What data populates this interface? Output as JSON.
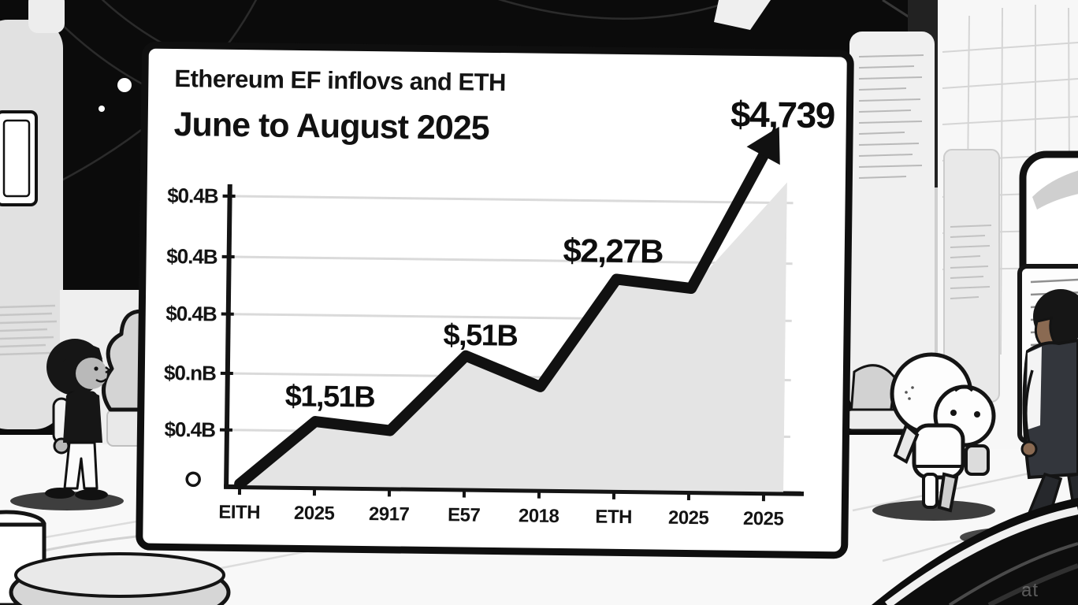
{
  "scene": {
    "sky_color": "#0b0b0b",
    "watermark": "at"
  },
  "board": {
    "title": "Ethereum EF inflovs and ETH",
    "subtitle": "June to August 2025"
  },
  "chart_data": {
    "type": "area",
    "title": "Ethereum EF inflovs and ETH",
    "subtitle": "June to August 2025",
    "x_tick_labels": [
      "EITH",
      "2025",
      "2917",
      "E57",
      "2018",
      "ETH",
      "2025",
      "2025"
    ],
    "y_ticks": [
      {
        "label": "$0.4B",
        "value": 4.24
      },
      {
        "label": "$0.4B",
        "value": 3.35
      },
      {
        "label": "$0.4B",
        "value": 2.51
      },
      {
        "label": "$0.nB",
        "value": 1.64
      },
      {
        "label": "$0.4B",
        "value": 0.81
      }
    ],
    "ylim": [
      0,
      5.2
    ],
    "values_billions_estimated": [
      0.02,
      0.95,
      0.83,
      1.94,
      1.5,
      3.09,
      2.97,
      5.05
    ],
    "annotations": [
      {
        "text": "$1,51B",
        "point_index": 1
      },
      {
        "text": "$,51B",
        "point_index": 3
      },
      {
        "text": "$2,27B",
        "point_index": 5
      },
      {
        "text": "$4,739",
        "point_index": 7
      }
    ],
    "grid": true,
    "legend": false,
    "line_color": "#111111",
    "area_fill_color": "#e4e4e4",
    "arrow_end": true
  }
}
